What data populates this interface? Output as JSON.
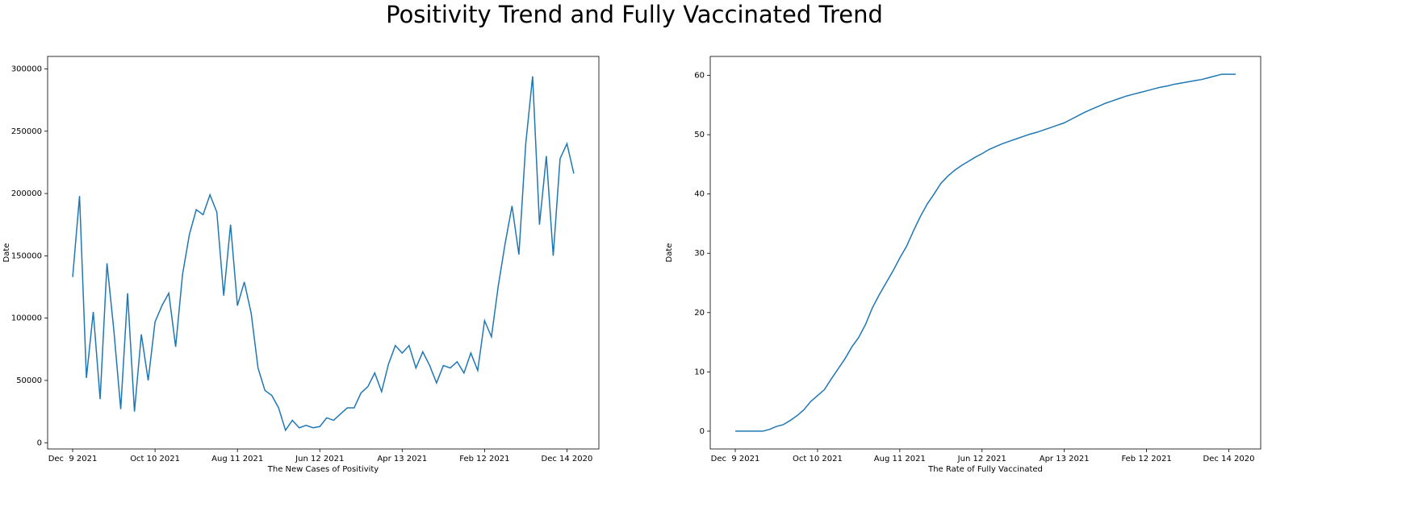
{
  "title": "Positivity Trend and Fully Vaccinated Trend",
  "chart_data": [
    {
      "type": "line",
      "x_label": "The New Cases of Positivity",
      "y_label": "Date",
      "color": "#1f77b4",
      "categories": [
        "Dec  9 2021",
        null,
        null,
        null,
        null,
        null,
        null,
        null,
        null,
        null,
        null,
        null,
        "Oct 10 2021",
        null,
        null,
        null,
        null,
        null,
        null,
        null,
        null,
        null,
        null,
        null,
        "Aug 11 2021",
        null,
        null,
        null,
        null,
        null,
        null,
        null,
        null,
        null,
        null,
        null,
        "Jun 12 2021",
        null,
        null,
        null,
        null,
        null,
        null,
        null,
        null,
        null,
        null,
        null,
        "Apr 13 2021",
        null,
        null,
        null,
        null,
        null,
        null,
        null,
        null,
        null,
        null,
        null,
        "Feb 12 2021",
        null,
        null,
        null,
        null,
        null,
        null,
        null,
        null,
        null,
        null,
        null,
        "Dec 14 2020",
        null
      ],
      "values": [
        133000,
        198000,
        52000,
        105000,
        35000,
        144000,
        90000,
        27000,
        120000,
        25000,
        87000,
        50000,
        97000,
        110000,
        120000,
        77000,
        135000,
        167000,
        187000,
        183000,
        199000,
        185000,
        118000,
        175000,
        110000,
        129000,
        104000,
        60000,
        42000,
        38000,
        28000,
        10000,
        18000,
        12000,
        14000,
        12000,
        13000,
        20000,
        18000,
        23000,
        28000,
        28000,
        40000,
        45000,
        56000,
        41000,
        63000,
        78000,
        72000,
        78000,
        60000,
        73000,
        62000,
        48000,
        62000,
        60000,
        65000,
        56000,
        72000,
        58000,
        98000,
        85000,
        126000,
        160000,
        190000,
        151000,
        240000,
        294000,
        175000,
        230000,
        150000,
        228000,
        240000,
        216000
      ],
      "ylim": [
        -5000,
        310000
      ],
      "yticks": [
        0,
        50000,
        100000,
        150000,
        200000,
        250000,
        300000
      ]
    },
    {
      "type": "line",
      "x_label": "The Rate of Fully Vaccinated",
      "y_label": "Date",
      "color": "#1f77b4",
      "categories": [
        "Dec  9 2021",
        null,
        null,
        null,
        null,
        null,
        null,
        null,
        null,
        null,
        null,
        null,
        "Oct 10 2021",
        null,
        null,
        null,
        null,
        null,
        null,
        null,
        null,
        null,
        null,
        null,
        "Aug 11 2021",
        null,
        null,
        null,
        null,
        null,
        null,
        null,
        null,
        null,
        null,
        null,
        "Jun 12 2021",
        null,
        null,
        null,
        null,
        null,
        null,
        null,
        null,
        null,
        null,
        null,
        "Apr 13 2021",
        null,
        null,
        null,
        null,
        null,
        null,
        null,
        null,
        null,
        null,
        null,
        "Feb 12 2021",
        null,
        null,
        null,
        null,
        null,
        null,
        null,
        null,
        null,
        null,
        null,
        "Dec 14 2020",
        null
      ],
      "values": [
        0,
        0,
        0,
        0,
        0,
        0.3,
        0.8,
        1.1,
        1.8,
        2.6,
        3.6,
        5.0,
        6.0,
        7.0,
        8.8,
        10.5,
        12.2,
        14.2,
        15.8,
        18.0,
        20.8,
        23.0,
        25.0,
        27.0,
        29.2,
        31.2,
        33.8,
        36.2,
        38.3,
        40.0,
        41.8,
        43.0,
        44.0,
        44.8,
        45.5,
        46.2,
        46.8,
        47.5,
        48.0,
        48.5,
        48.9,
        49.3,
        49.7,
        50.1,
        50.4,
        50.8,
        51.2,
        51.6,
        52.0,
        52.6,
        53.2,
        53.8,
        54.3,
        54.8,
        55.3,
        55.7,
        56.1,
        56.5,
        56.8,
        57.1,
        57.4,
        57.7,
        58.0,
        58.2,
        58.5,
        58.7,
        58.9,
        59.1,
        59.3,
        59.6,
        59.9,
        60.2,
        60.2,
        60.2
      ],
      "ylim": [
        -3,
        63.2
      ],
      "yticks": [
        0,
        10,
        20,
        30,
        40,
        50,
        60
      ]
    }
  ]
}
